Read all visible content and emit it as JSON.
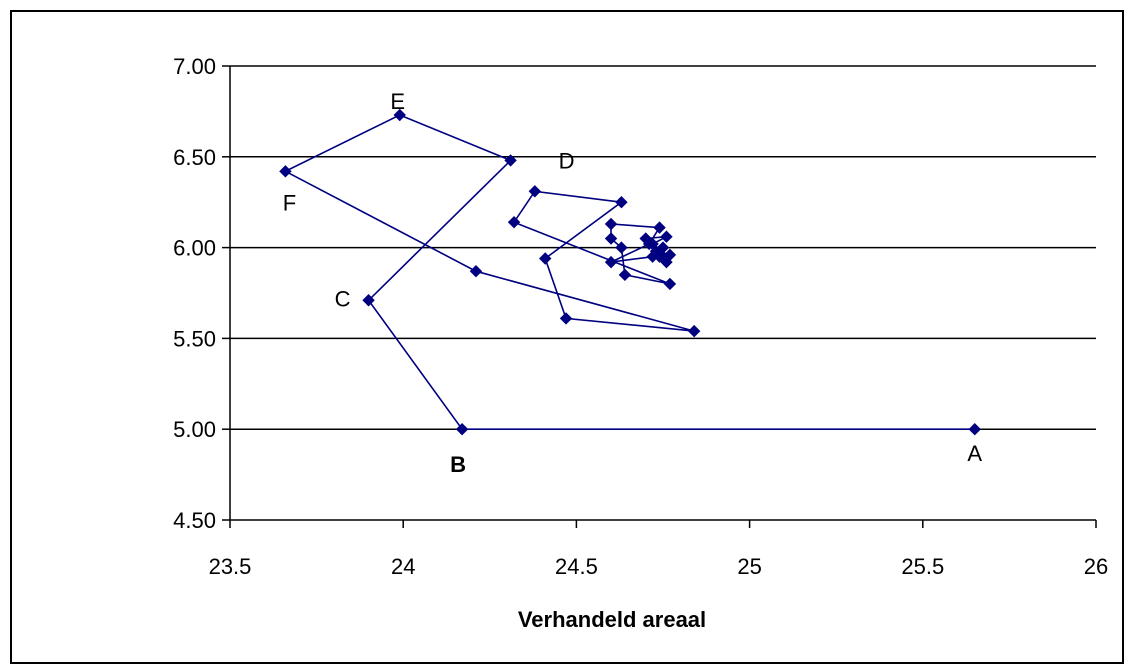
{
  "chart_data": {
    "type": "scatter",
    "connected": true,
    "title": "",
    "xlabel": "Verhandeld areaal",
    "ylabel": "",
    "xlim": [
      23.5,
      26
    ],
    "ylim": [
      4.5,
      7.0
    ],
    "x_ticks": [
      "23.5",
      "24",
      "24.5",
      "25",
      "25.5",
      "26"
    ],
    "y_ticks": [
      "4.50",
      "5.00",
      "5.50",
      "6.00",
      "6.50",
      "7.00"
    ],
    "grid": "horizontal",
    "colors": {
      "series": "#000080",
      "grid": "#000000",
      "text": "#000000"
    },
    "series": [
      {
        "points": [
          {
            "x": 25.65,
            "y": 5.0,
            "label": "A"
          },
          {
            "x": 24.17,
            "y": 5.0,
            "label": "B"
          },
          {
            "x": 23.9,
            "y": 5.71,
            "label": "C"
          },
          {
            "x": 24.31,
            "y": 6.48,
            "label": "D"
          },
          {
            "x": 23.99,
            "y": 6.73,
            "label": "E"
          },
          {
            "x": 23.66,
            "y": 6.42,
            "label": "F"
          },
          {
            "x": 24.21,
            "y": 5.87
          },
          {
            "x": 24.84,
            "y": 5.54
          },
          {
            "x": 24.47,
            "y": 5.61
          },
          {
            "x": 24.41,
            "y": 5.94
          },
          {
            "x": 24.63,
            "y": 6.25
          },
          {
            "x": 24.38,
            "y": 6.31
          },
          {
            "x": 24.32,
            "y": 6.14
          },
          {
            "x": 24.77,
            "y": 5.8
          },
          {
            "x": 24.64,
            "y": 5.85
          },
          {
            "x": 24.63,
            "y": 6.0
          },
          {
            "x": 24.6,
            "y": 6.05
          },
          {
            "x": 24.6,
            "y": 6.13
          },
          {
            "x": 24.74,
            "y": 6.11
          },
          {
            "x": 24.71,
            "y": 6.02
          },
          {
            "x": 24.6,
            "y": 5.92
          },
          {
            "x": 24.72,
            "y": 5.95
          },
          {
            "x": 24.74,
            "y": 5.97
          },
          {
            "x": 24.77,
            "y": 5.96
          },
          {
            "x": 24.76,
            "y": 5.92
          },
          {
            "x": 24.73,
            "y": 5.98
          },
          {
            "x": 24.72,
            "y": 6.02
          },
          {
            "x": 24.76,
            "y": 6.06
          },
          {
            "x": 24.7,
            "y": 6.05
          },
          {
            "x": 24.74,
            "y": 5.95
          },
          {
            "x": 24.75,
            "y": 6.0
          }
        ]
      }
    ]
  }
}
